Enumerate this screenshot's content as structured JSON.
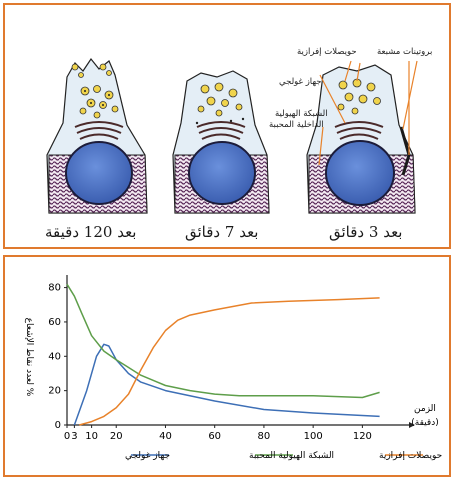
{
  "colors": {
    "frame": "#e07a2e",
    "golgi": "#3d6fb6",
    "rer": "#5e9e4a",
    "vesicles": "#e8822a",
    "nucleus": "#4a73c8",
    "er_purple": "#5a2a5a",
    "granule": "#f0d44c"
  },
  "figure": {
    "cells": [
      {
        "caption": "بعد 120 دقيقة"
      },
      {
        "caption": "بعد 7 دقائق"
      },
      {
        "caption": "بعد 3 دقائق"
      }
    ],
    "labels": {
      "labeled_proteins": "بروتينات مشبعة",
      "secretory_vesicles": "حويصلات إفرازية",
      "golgi": "جهاز غولجي",
      "rer_line1": "الشبكة الهيولية",
      "rer_line2": "الداخلية المحببة"
    }
  },
  "chart_data": {
    "type": "line",
    "ylabel": "% لعدد نقاط الإشعاع",
    "xlabel_line1": "الزمن",
    "xlabel_line2": "(دقيقة)",
    "x_ticks": [
      "0",
      "3",
      "10",
      "20",
      "40",
      "60",
      "80",
      "100",
      "120"
    ],
    "y_ticks": [
      "0",
      "20",
      "40",
      "60",
      "80"
    ],
    "xlim": [
      0,
      130
    ],
    "ylim": [
      0,
      85
    ],
    "series": [
      {
        "name": "جهاز غولجي",
        "color": "#3d6fb6",
        "x": [
          3,
          8,
          12,
          15,
          17,
          20,
          25,
          30,
          40,
          60,
          80,
          100,
          127
        ],
        "y": [
          0,
          20,
          40,
          47,
          46,
          38,
          30,
          25,
          20,
          14,
          9,
          7,
          5
        ]
      },
      {
        "name": "الشبكة الهيولية المحببة",
        "color": "#5e9e4a",
        "x": [
          0,
          3,
          6,
          10,
          15,
          20,
          30,
          40,
          50,
          60,
          70,
          80,
          100,
          120,
          127
        ],
        "y": [
          82,
          75,
          65,
          52,
          43,
          38,
          29,
          23,
          20,
          18,
          17,
          17,
          17,
          16,
          19
        ]
      },
      {
        "name": "حويصلات إفرازية",
        "color": "#e8822a",
        "x": [
          5,
          10,
          15,
          20,
          25,
          30,
          35,
          40,
          45,
          50,
          60,
          75,
          90,
          110,
          127
        ],
        "y": [
          0,
          2,
          5,
          10,
          18,
          32,
          45,
          55,
          61,
          64,
          67,
          71,
          72,
          73,
          74
        ]
      }
    ]
  }
}
